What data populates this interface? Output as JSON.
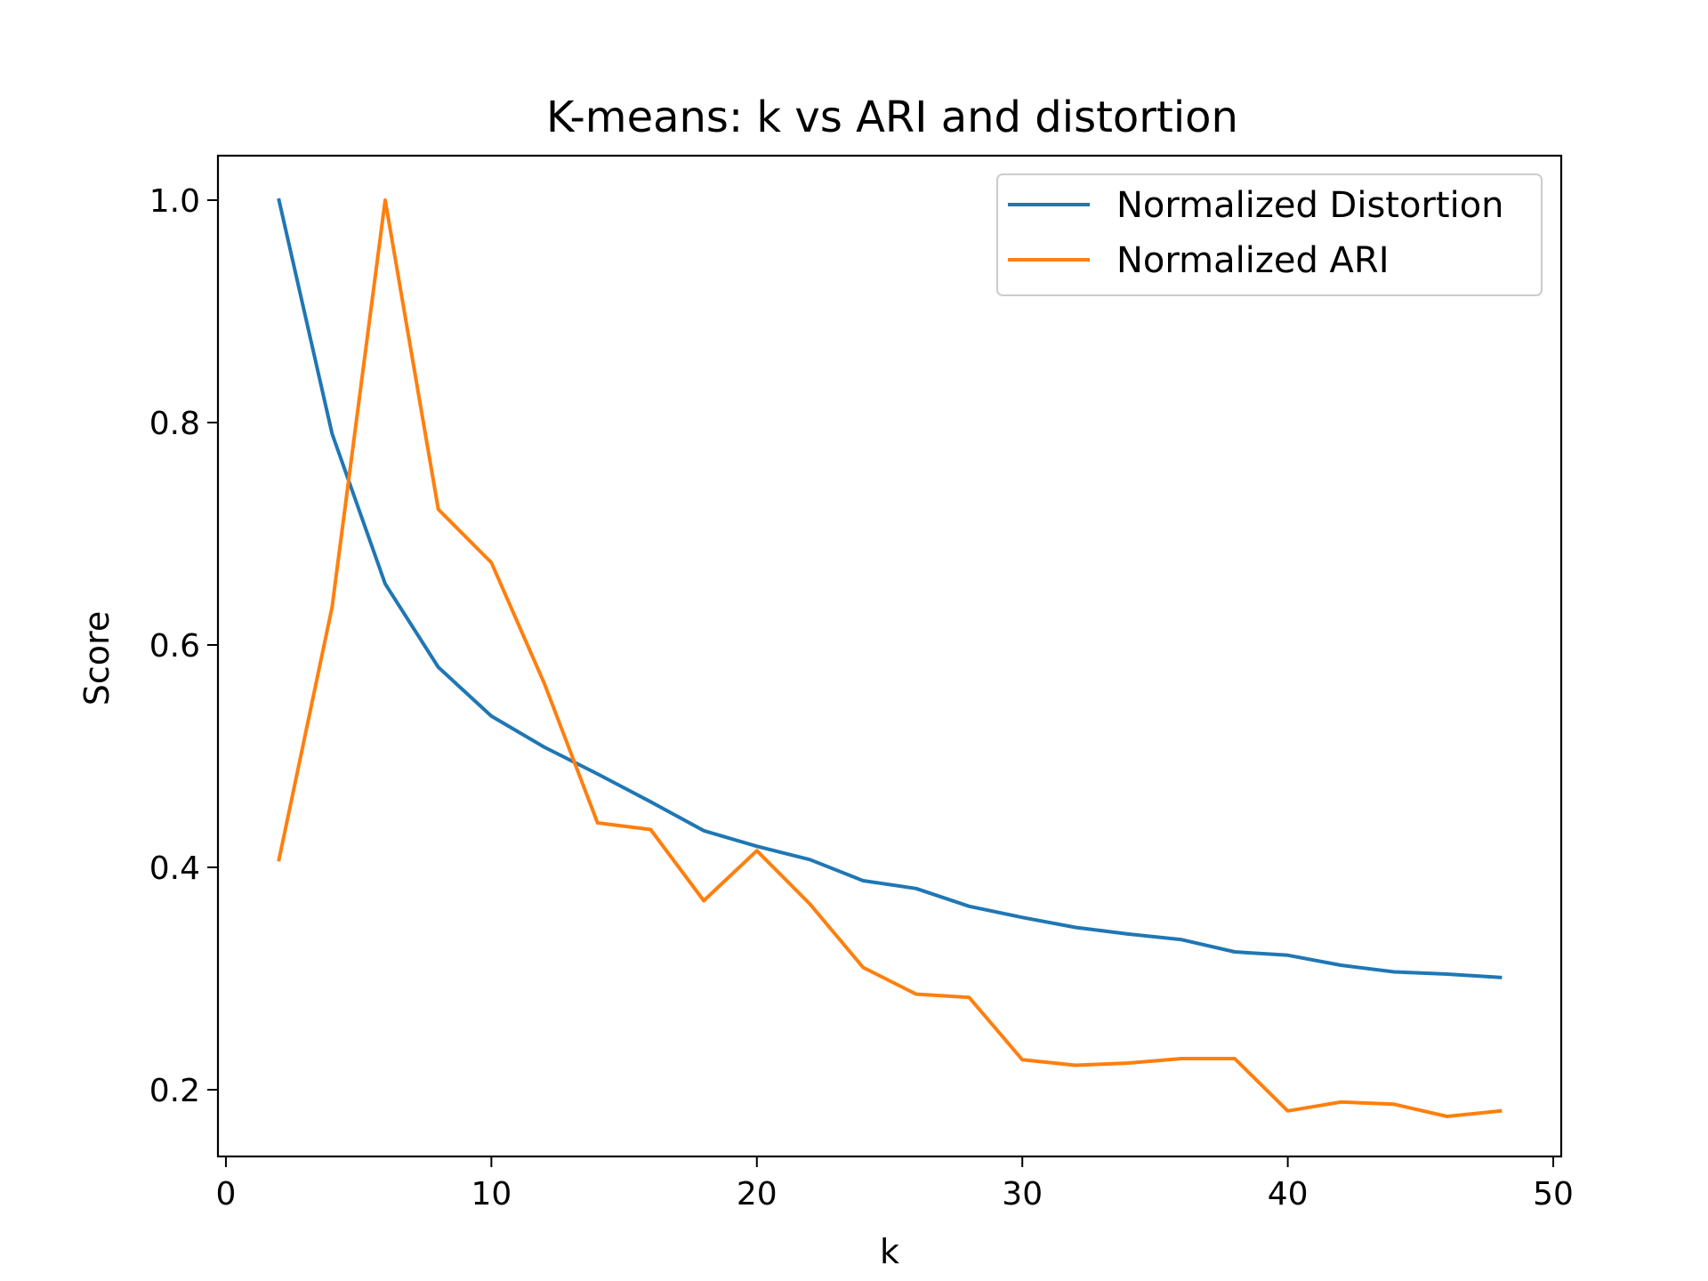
{
  "chart_data": {
    "type": "line",
    "title": "K-means: k vs ARI and distortion",
    "xlabel": "k",
    "ylabel": "Score",
    "xlim": [
      -0.3,
      50.3
    ],
    "ylim": [
      0.14,
      1.04
    ],
    "xticks": [
      0,
      10,
      20,
      30,
      40,
      50
    ],
    "yticks": [
      0.2,
      0.4,
      0.6,
      0.8,
      1.0
    ],
    "xtick_labels": [
      "0",
      "10",
      "20",
      "30",
      "40",
      "50"
    ],
    "ytick_labels": [
      "0.2",
      "0.4",
      "0.6",
      "0.8",
      "1.0"
    ],
    "grid": false,
    "legend_position": "top-right",
    "x": [
      2,
      4,
      6,
      8,
      10,
      12,
      14,
      16,
      18,
      20,
      22,
      24,
      26,
      28,
      30,
      32,
      34,
      36,
      38,
      40,
      42,
      44,
      46,
      48
    ],
    "series": [
      {
        "name": "Normalized Distortion",
        "color": "#1f77b4",
        "values": [
          1.0,
          0.79,
          0.655,
          0.58,
          0.536,
          0.508,
          0.484,
          0.459,
          0.433,
          0.419,
          0.407,
          0.388,
          0.381,
          0.365,
          0.355,
          0.346,
          0.34,
          0.335,
          0.324,
          0.321,
          0.312,
          0.306,
          0.304,
          0.301
        ]
      },
      {
        "name": "Normalized ARI",
        "color": "#ff7f0e",
        "values": [
          0.407,
          0.634,
          1.0,
          0.722,
          0.674,
          0.565,
          0.44,
          0.434,
          0.37,
          0.415,
          0.367,
          0.31,
          0.286,
          0.283,
          0.227,
          0.222,
          0.224,
          0.228,
          0.228,
          0.181,
          0.189,
          0.187,
          0.176,
          0.181
        ]
      }
    ]
  }
}
